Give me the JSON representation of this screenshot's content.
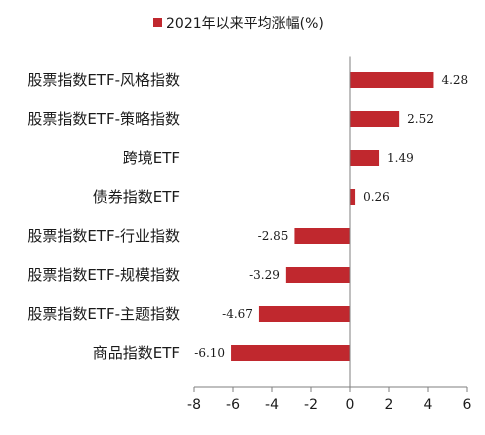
{
  "chart_data": {
    "type": "bar",
    "orientation": "horizontal",
    "categories": [
      "股票指数ETF-风格指数",
      "股票指数ETF-策略指数",
      "跨境ETF",
      "债券指数ETF",
      "股票指数ETF-行业指数",
      "股票指数ETF-规模指数",
      "股票指数ETF-主题指数",
      "商品指数ETF"
    ],
    "series": [
      {
        "name": "2021年以来平均涨幅(%)",
        "values": [
          4.28,
          2.52,
          1.49,
          0.26,
          -2.85,
          -3.29,
          -4.67,
          -6.1
        ],
        "labels": [
          "4.28",
          "2.52",
          "1.49",
          "0.26",
          "-2.85",
          "-3.29",
          "-4.67",
          "-6.10"
        ],
        "color": "#c0282e"
      }
    ],
    "x_ticks": [
      "-8",
      "-6",
      "-4",
      "-2",
      "0",
      "2",
      "4",
      "6"
    ],
    "xlim": [
      -8,
      6
    ],
    "legend_position": "top-center",
    "grid": false
  }
}
